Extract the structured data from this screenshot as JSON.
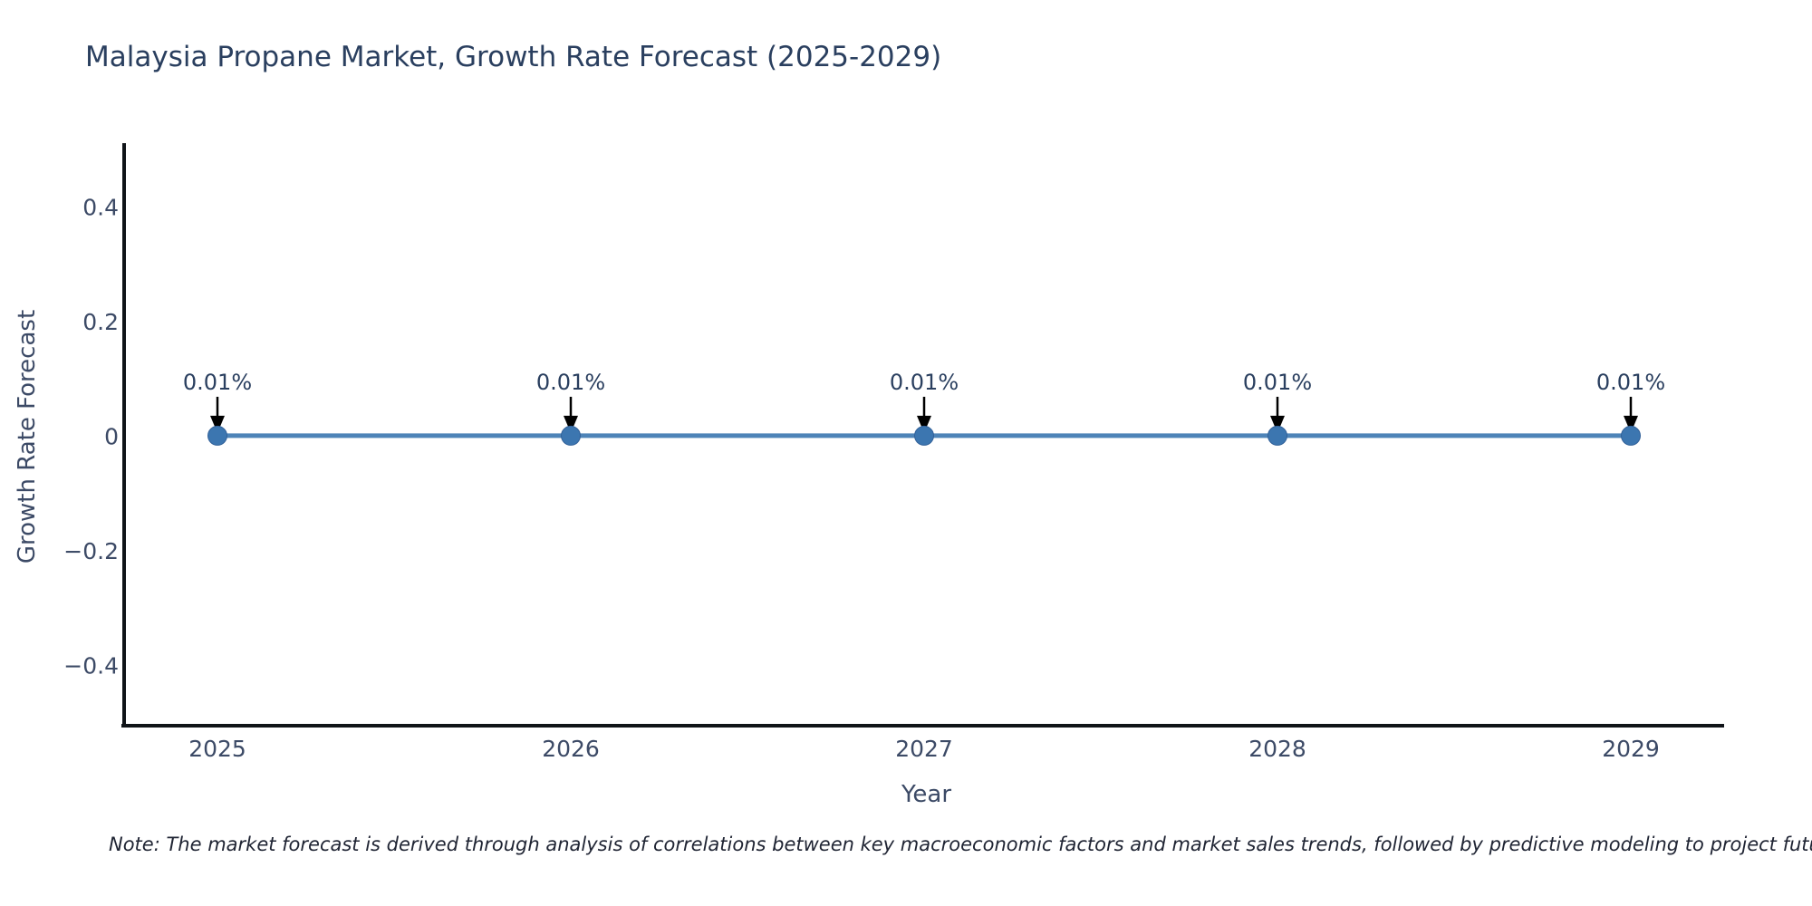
{
  "note": "Note: The market forecast is derived through analysis of correlations between key macroeconomic factors and market sales trends, followed by predictive modeling to project future sal",
  "chart_data": {
    "type": "line",
    "title": "Malaysia Propane Market, Growth Rate Forecast (2025-2029)",
    "xlabel": "Year",
    "ylabel": "Growth Rate Forecast",
    "x": [
      2025,
      2026,
      2027,
      2028,
      2029
    ],
    "y": [
      0.0001,
      0.0001,
      0.0001,
      0.0001,
      0.0001
    ],
    "point_labels": [
      "0.01%",
      "0.01%",
      "0.01%",
      "0.01%",
      "0.01%"
    ],
    "xticks": [
      "2025",
      "2026",
      "2027",
      "2028",
      "2029"
    ],
    "yticks": {
      "values": [
        0.4,
        0.2,
        0,
        -0.2,
        -0.4
      ],
      "labels": [
        "0.4",
        "0.2",
        "0",
        "−0.2",
        "−0.4"
      ]
    },
    "ylim": [
      -0.51,
      0.51
    ],
    "grid": false,
    "legend": false,
    "colors": {
      "line": "#4e84b8",
      "marker": "#3c76b0",
      "marker_stroke": "#326199",
      "axis": "#101418",
      "tick_text": "#3c4a66",
      "title_text": "#2a3f5f",
      "annotation_text": "#2a3f5f",
      "arrow": "#000000"
    }
  }
}
